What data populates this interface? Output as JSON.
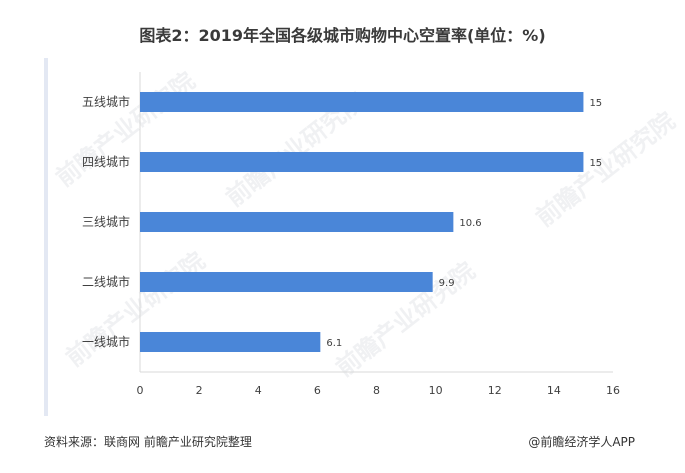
{
  "title": "图表2：2019年全国各级城市购物中心空置率(单位：%)",
  "source": "资料来源：联商网 前瞻产业研究院整理",
  "credit": "@前瞻经济学人APP",
  "watermark": "前瞻产业研究院",
  "colors": {
    "bar": "#4a86d8",
    "axis": "#d9d9d9",
    "text": "#404040"
  },
  "chart_data": {
    "type": "bar",
    "orientation": "horizontal",
    "categories": [
      "五线城市",
      "四线城市",
      "三线城市",
      "二线城市",
      "一线城市"
    ],
    "values": [
      15,
      15,
      10.6,
      9.9,
      6.1
    ],
    "value_labels": [
      "15",
      "15",
      "10.6",
      "9.9",
      "6.1"
    ],
    "xlim": [
      0,
      16
    ],
    "xticks": [
      "0",
      "2",
      "4",
      "6",
      "8",
      "10",
      "12",
      "14",
      "16"
    ],
    "grid": false,
    "legend": "none"
  }
}
